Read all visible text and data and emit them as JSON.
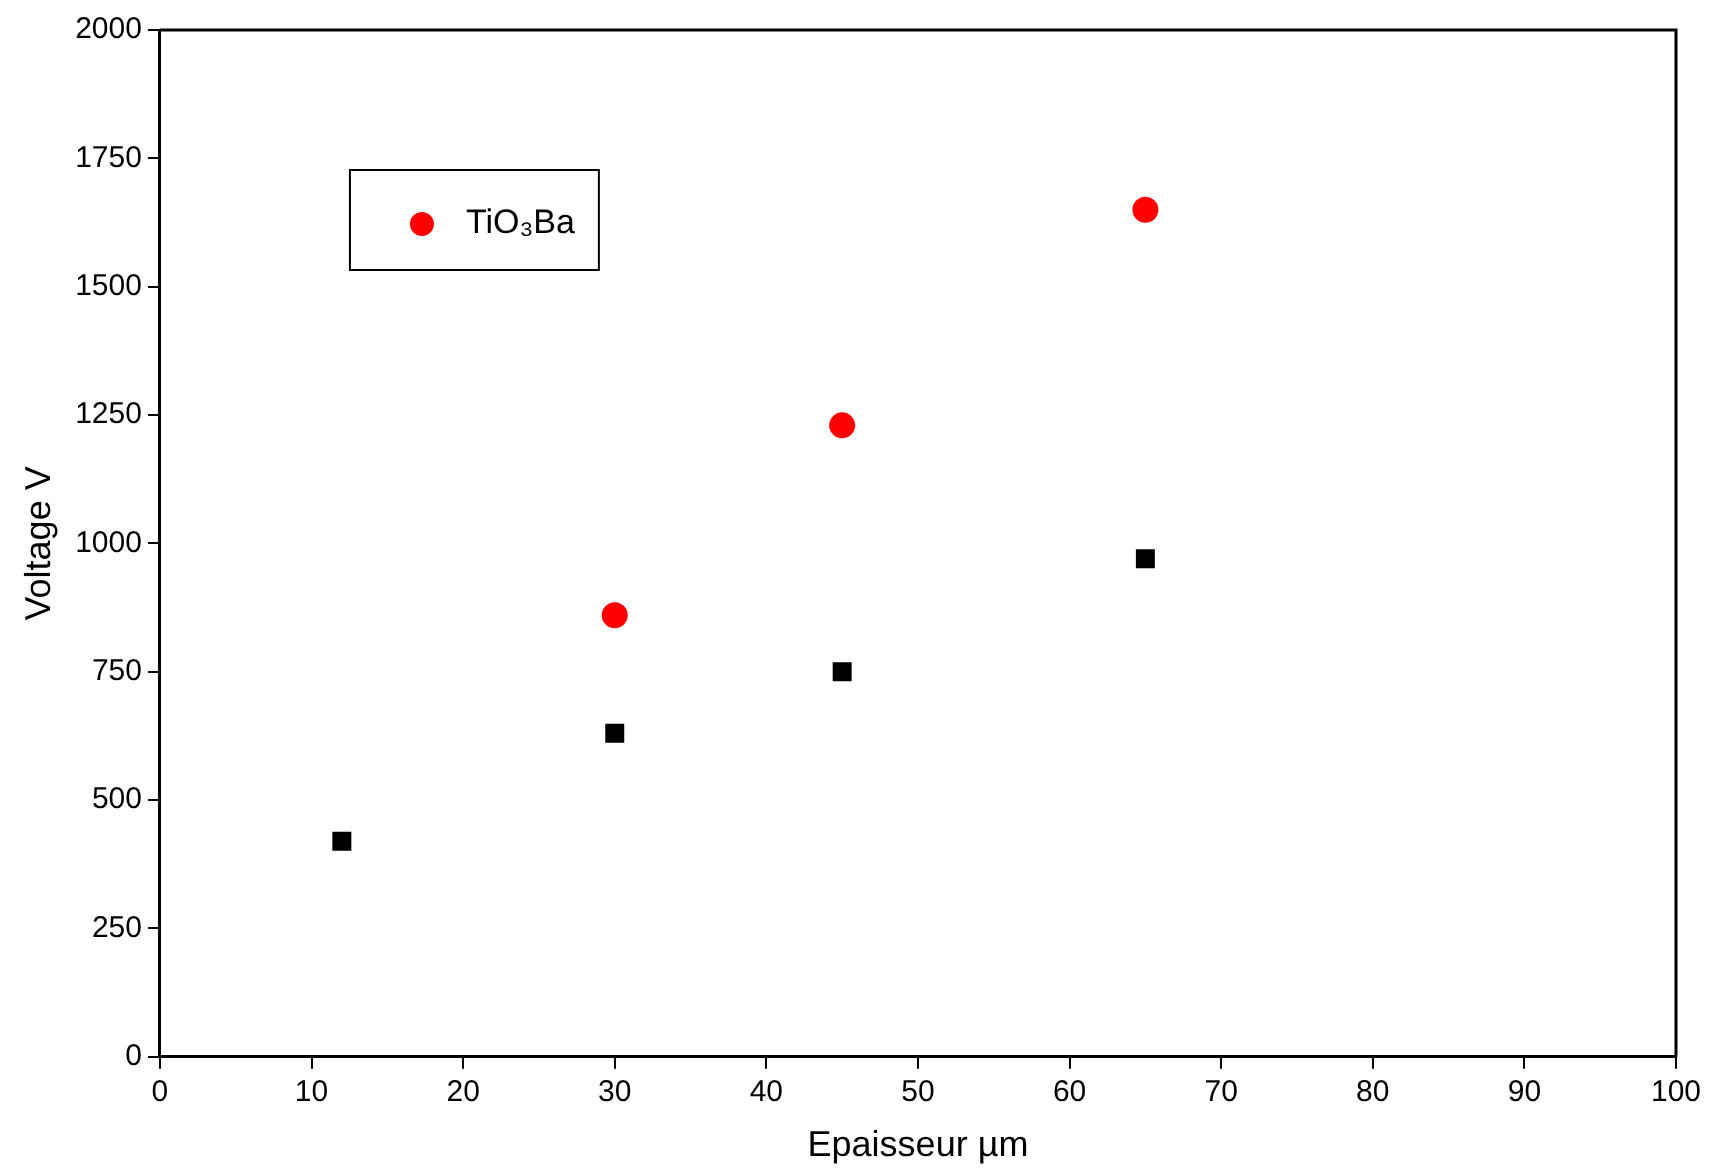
{
  "chart_data": {
    "type": "scatter",
    "xlabel": "Epaisseur µm",
    "ylabel": "Voltage V",
    "xlim": [
      0,
      100
    ],
    "xticks": [
      0,
      10,
      20,
      30,
      40,
      50,
      60,
      70,
      80,
      90,
      100
    ],
    "ylim": [
      0,
      2000
    ],
    "yticks": [
      0,
      250,
      500,
      750,
      1000,
      1250,
      1500,
      1750,
      2000
    ],
    "legend": "top left",
    "grid": false,
    "series": [
      {
        "color": "#000000",
        "marker": "square",
        "x": [
          12,
          30,
          45,
          65
        ],
        "values": [
          420,
          630,
          750,
          970
        ]
      },
      {
        "name": "TiO₃Ba",
        "color": "#ff0000",
        "marker": "circle",
        "x": [
          30,
          45,
          65
        ],
        "values": [
          860,
          1230,
          1650
        ]
      }
    ]
  }
}
